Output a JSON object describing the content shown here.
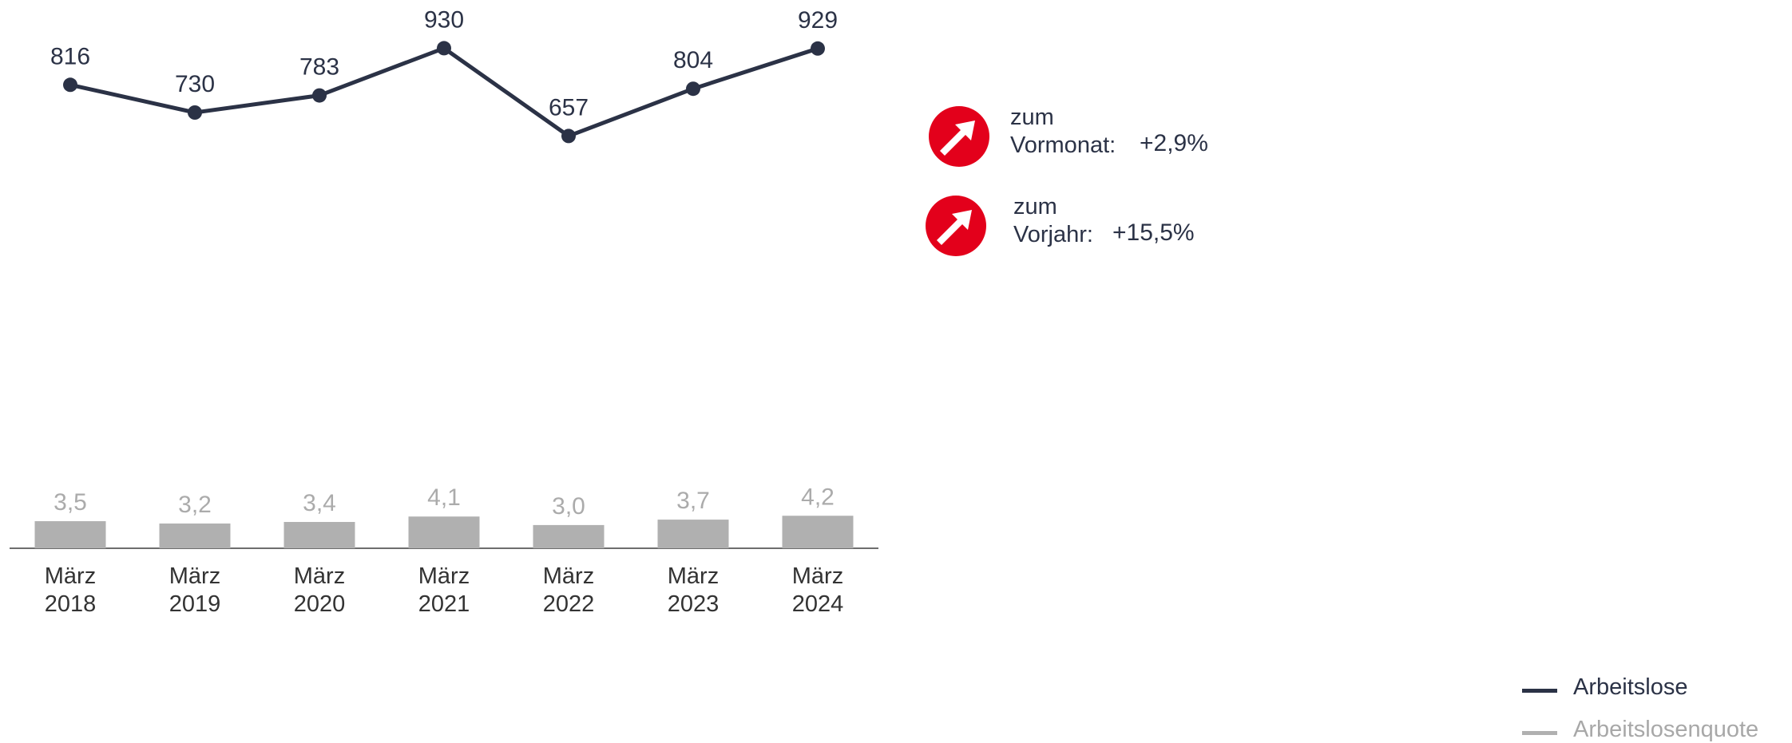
{
  "chart_data": {
    "type": "line+bar",
    "categories": [
      [
        "März",
        "2018"
      ],
      [
        "März",
        "2019"
      ],
      [
        "März",
        "2020"
      ],
      [
        "März",
        "2021"
      ],
      [
        "März",
        "2022"
      ],
      [
        "März",
        "2023"
      ],
      [
        "März",
        "2024"
      ]
    ],
    "series": [
      {
        "name": "Arbeitslose",
        "type": "line",
        "color": "#2b3246",
        "values": [
          816,
          730,
          783,
          930,
          657,
          804,
          929
        ],
        "labels": [
          "816",
          "730",
          "783",
          "930",
          "657",
          "804",
          "929"
        ]
      },
      {
        "name": "Arbeitslosenquote",
        "type": "bar",
        "color": "#b0b0b0",
        "values": [
          3.5,
          3.2,
          3.4,
          4.1,
          3.0,
          3.7,
          4.2
        ],
        "labels": [
          "3,5",
          "3,2",
          "3,4",
          "4,1",
          "3,0",
          "3,7",
          "4,2"
        ]
      }
    ],
    "legend_placement": "bottom-right",
    "grid": false
  },
  "changes": [
    {
      "label_line1": "zum",
      "label_line2": "Vormonat:",
      "value": "+2,9%",
      "direction": "up",
      "icon": "arrow-up-right-icon",
      "color": "#e3001b"
    },
    {
      "label_line1": "zum",
      "label_line2": "Vorjahr:",
      "value": "+15,5%",
      "direction": "up",
      "icon": "arrow-up-right-icon",
      "color": "#e3001b"
    }
  ],
  "legend": {
    "items": [
      "Arbeitslose",
      "Arbeitslosenquote"
    ]
  }
}
